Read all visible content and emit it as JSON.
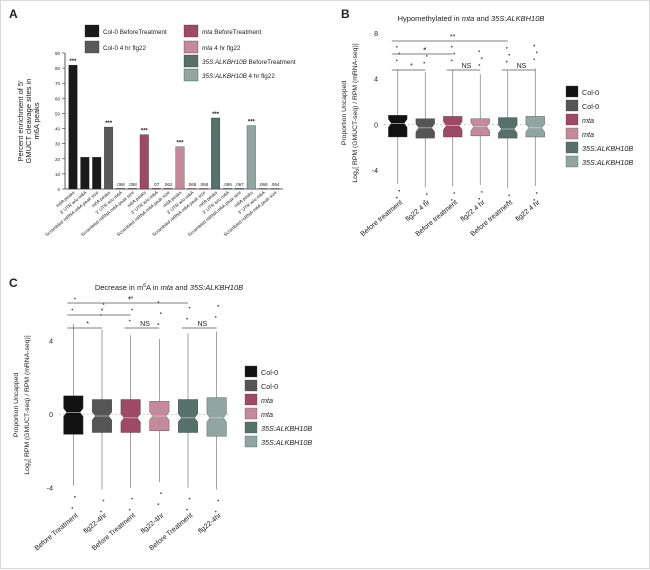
{
  "chart_data": [
    {
      "panel": "A",
      "type": "bar",
      "ylabel": "Percent enrichment of 5' GMUCT cleavage sites in m6A peaks",
      "ylim": [
        0,
        90
      ],
      "yticks": [
        0,
        10,
        20,
        30,
        40,
        50,
        60,
        70,
        80,
        90
      ],
      "legend": [
        {
          "name": "Col-0 BeforeTreatment",
          "color": "#1a1a1a"
        },
        {
          "name": "Col-0 4 hr flg22",
          "color": "#5a5a5a"
        },
        {
          "name": "mta BeforeTreatment",
          "color": "#9e4a66"
        },
        {
          "name": "mta 4 hr flg22",
          "color": "#c48a9c"
        },
        {
          "name": "35S:ALKBH10B BeforeTreatment",
          "color": "#56706a"
        },
        {
          "name": "35S:ALKBH10B 4 hr flg22",
          "color": "#8fa7a0"
        }
      ],
      "categories": [
        "m6A peaks",
        "3' UTR w/o m6A",
        "Scrambled mRNA m6A peak size",
        "m6A peaks",
        "3' UTR w/o m6A",
        "Scrambled mRNA m6A peak size",
        "m6A peaks",
        "3' UTR w/o m6A",
        "Scrambled mRNA m6A peak size",
        "m6A peaks",
        "3' UTR w/o m6A",
        "Scrambled mRNA m6A peak size",
        "m6A peaks",
        "3' UTR w/o m6A",
        "Scrambled mRNA m6A peak size",
        "m6A peaks",
        "3' UTR w/o m6A",
        "Scrambled mRNA m6A peak size"
      ],
      "values": [
        82,
        21,
        21,
        41,
        0.066,
        0.058,
        36,
        0.07,
        0.062,
        28,
        0.068,
        0.068,
        47,
        0.086,
        0.067,
        42,
        0.069,
        0.064
      ],
      "bar_colors": [
        "#1a1a1a",
        "#1a1a1a",
        "#1a1a1a",
        "#5a5a5a",
        "#5a5a5a",
        "#5a5a5a",
        "#9e4a66",
        "#9e4a66",
        "#9e4a66",
        "#c48a9c",
        "#c48a9c",
        "#c48a9c",
        "#56706a",
        "#56706a",
        "#56706a",
        "#8fa7a0",
        "#8fa7a0",
        "#8fa7a0"
      ],
      "value_labels": [
        "***",
        "",
        "",
        "***",
        ".066",
        ".058",
        "***",
        ".07",
        ".062",
        "***",
        ".068",
        ".068",
        "***",
        ".086",
        ".067",
        "***",
        ".069",
        ".064"
      ]
    },
    {
      "panel": "B",
      "type": "box",
      "title": "Hypomethylated in mta and 35S:ALKBH10B",
      "ylabel": "Proportion Uncapped Log2[ RPM (GMUCT-seq) / RPM (mRNA-seq)]",
      "ylim": [
        -6,
        8
      ],
      "yticks": [
        -4,
        0,
        4,
        8
      ],
      "categories": [
        "Before treatment",
        "flg22 4 hr",
        "Before treatment",
        "flg22 4 hr",
        "Before treatment",
        "flg22 4 hr"
      ],
      "series": [
        {
          "name": "Col-0",
          "color": "#111111",
          "box": [
            -5.2,
            -1.1,
            0.1,
            0.8,
            4.8
          ]
        },
        {
          "name": "Col-0",
          "color": "#555555",
          "box": [
            -5.5,
            -1.2,
            -0.3,
            0.5,
            4.6
          ]
        },
        {
          "name": "mta",
          "color": "#9e4a66",
          "box": [
            -5.4,
            -1.1,
            -0.1,
            0.7,
            4.8
          ]
        },
        {
          "name": "mta",
          "color": "#c48a9c",
          "box": [
            -5.3,
            -1.0,
            -0.2,
            0.5,
            4.4
          ]
        },
        {
          "name": "35S:ALKBH10B",
          "color": "#56706a",
          "box": [
            -5.6,
            -1.2,
            -0.4,
            0.6,
            4.7
          ]
        },
        {
          "name": "35S:ALKBH10B",
          "color": "#8fa7a0",
          "box": [
            -5.4,
            -1.1,
            -0.3,
            0.7,
            4.9
          ]
        }
      ],
      "significance": [
        {
          "from": 0,
          "to": 1,
          "label": "*"
        },
        {
          "from": 0,
          "to": 2,
          "label": "*"
        },
        {
          "from": 0,
          "to": 4,
          "label": "**"
        },
        {
          "from": 2,
          "to": 3,
          "label": "NS"
        },
        {
          "from": 4,
          "to": 5,
          "label": "NS"
        }
      ]
    },
    {
      "panel": "C",
      "type": "box",
      "title": "Decrease in m6A in mta and 35S:ALKBH10B",
      "ylabel": "Proportion Uncapped Log2[ RPM (GMUCT-seq) / RPM (mRNA-seq)]",
      "ylim": [
        -5,
        6
      ],
      "yticks": [
        -4,
        0,
        4
      ],
      "categories": [
        "Before Treatment",
        "flg22-4hr",
        "Before Treatment",
        "flg22-4hr",
        "Before Treatment",
        "flg22-4hr"
      ],
      "series": [
        {
          "name": "Col-0",
          "color": "#111111",
          "box": [
            -3.9,
            -1.1,
            0.1,
            1.0,
            4.9
          ]
        },
        {
          "name": "Col-0",
          "color": "#555555",
          "box": [
            -4.1,
            -1.0,
            -0.1,
            0.8,
            4.6
          ]
        },
        {
          "name": "mta",
          "color": "#9e4a66",
          "box": [
            -4.0,
            -1.0,
            -0.2,
            0.8,
            4.3
          ]
        },
        {
          "name": "mta",
          "color": "#c48a9c",
          "box": [
            -3.7,
            -0.9,
            -0.1,
            0.7,
            4.1
          ]
        },
        {
          "name": "35S:ALKBH10B",
          "color": "#56706a",
          "box": [
            -4.0,
            -1.0,
            -0.2,
            0.8,
            4.4
          ]
        },
        {
          "name": "35S:ALKBH10B",
          "color": "#8fa7a0",
          "box": [
            -4.1,
            -1.2,
            -0.2,
            0.9,
            4.5
          ]
        }
      ],
      "significance": [
        {
          "from": 0,
          "to": 1,
          "label": "*"
        },
        {
          "from": 0,
          "to": 2,
          "label": "*"
        },
        {
          "from": 0,
          "to": 4,
          "label": "**"
        },
        {
          "from": 2,
          "to": 3,
          "label": "NS"
        },
        {
          "from": 4,
          "to": 5,
          "label": "NS"
        }
      ]
    }
  ]
}
